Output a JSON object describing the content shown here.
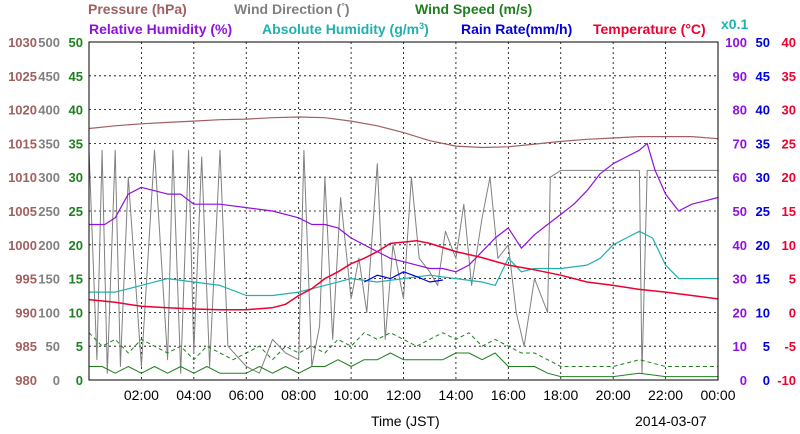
{
  "header": {
    "pressure": "Pressure (hPa)",
    "wind_direction_text": "Wind Direction (",
    "deg_symbol": "°",
    "wind_direction_close": ")",
    "wind_speed": "Wind Speed (m/s)",
    "relative_humidity": "Relative Humidity (%)",
    "absolute_humidity_text": "Absolute Humidity (g/m",
    "absolute_humidity_sup": "3",
    "absolute_humidity_close": ")",
    "rain_rate": "Rain Rate(mm/h)",
    "temperature_text": "Temperature (",
    "temperature_unit": "°C",
    "temperature_close": ")",
    "rain_scale_note": "x0.1"
  },
  "footer": {
    "xlabel": "Time (JST)",
    "date": "2014-03-07"
  },
  "colors": {
    "pressure": "#a06060",
    "wind_direction": "#808080",
    "wind_speed": "#208020",
    "relative_humidity": "#9010e0",
    "absolute_humidity": "#20b0b0",
    "rain_rate": "#0000dd",
    "temperature": "#ee0030",
    "grid": "#000000"
  },
  "chart_data": {
    "type": "line",
    "x_unit": "hours (JST)",
    "xlim": [
      0,
      24
    ],
    "x_ticks": [
      "02:00",
      "04:00",
      "06:00",
      "08:00",
      "10:00",
      "12:00",
      "14:00",
      "16:00",
      "18:00",
      "20:00",
      "22:00",
      "00:00"
    ],
    "grid": true,
    "axes": {
      "pressure": {
        "ylim": [
          980,
          1030
        ],
        "ticks": [
          "980",
          "985",
          "990",
          "995",
          "1000",
          "1005",
          "1010",
          "1015",
          "1020",
          "1025",
          "1030"
        ]
      },
      "wind_direction": {
        "ylim": [
          0,
          500
        ],
        "ticks": [
          "0",
          "50",
          "100",
          "150",
          "200",
          "250",
          "300",
          "350",
          "400",
          "450",
          "500"
        ]
      },
      "wind_speed": {
        "ylim": [
          0,
          50
        ],
        "ticks": [
          "0",
          "5",
          "10",
          "15",
          "20",
          "25",
          "30",
          "35",
          "40",
          "45",
          "50"
        ]
      },
      "relative_humidity": {
        "ylim": [
          0,
          100
        ],
        "ticks": [
          "0",
          "10",
          "20",
          "30",
          "40",
          "50",
          "60",
          "70",
          "80",
          "90",
          "100"
        ]
      },
      "rain_rate": {
        "ylim": [
          0,
          50
        ],
        "ticks": [
          "0",
          "5",
          "10",
          "15",
          "20",
          "25",
          "30",
          "35",
          "40",
          "45",
          "50"
        ]
      },
      "temperature": {
        "ylim": [
          -10,
          40
        ],
        "ticks": [
          "-10",
          "-5",
          "0",
          "5",
          "10",
          "15",
          "20",
          "25",
          "30",
          "35",
          "40"
        ]
      }
    },
    "series": [
      {
        "name": "Pressure (hPa)",
        "axis": "pressure",
        "x": [
          0,
          1,
          2,
          3,
          4,
          5,
          6,
          7,
          8,
          9,
          10,
          11,
          12,
          13,
          14,
          15,
          16,
          17,
          18,
          19,
          20,
          21,
          22,
          23,
          24
        ],
        "values": [
          1017.2,
          1017.6,
          1017.9,
          1018.1,
          1018.3,
          1018.5,
          1018.6,
          1018.8,
          1018.9,
          1018.8,
          1018.3,
          1017.6,
          1016.6,
          1015.4,
          1014.6,
          1014.4,
          1014.5,
          1014.9,
          1015.3,
          1015.6,
          1015.8,
          1016.0,
          1016.0,
          1016.0,
          1015.7
        ]
      },
      {
        "name": "Relative Humidity (%)",
        "axis": "relative_humidity",
        "x": [
          0,
          0.6,
          1,
          1.5,
          2,
          2.5,
          3,
          3.5,
          4,
          5,
          6,
          7,
          8,
          8.5,
          9,
          9.5,
          10,
          10.5,
          11,
          11.5,
          12,
          12.5,
          13,
          13.5,
          14,
          14.5,
          15,
          15.5,
          16,
          16.5,
          17,
          17.5,
          18,
          18.5,
          19,
          19.5,
          20,
          20.5,
          21,
          21.3,
          21.6,
          22,
          22.5,
          23,
          23.5,
          24
        ],
        "values": [
          46,
          46,
          48,
          55,
          57,
          56,
          55,
          55,
          52,
          52,
          51,
          50,
          48,
          46,
          46,
          45,
          42,
          40,
          38,
          36,
          35,
          34,
          33,
          33,
          32,
          34,
          38,
          42,
          45,
          39,
          43,
          46,
          49,
          52,
          56,
          61,
          64,
          66,
          68,
          70,
          62,
          55,
          50,
          52,
          53,
          54
        ]
      },
      {
        "name": "Absolute Humidity (g/m3)",
        "axis": "relative_humidity",
        "x": [
          0,
          1,
          2,
          3,
          4,
          5,
          6,
          7,
          8,
          9,
          10,
          11,
          12,
          13,
          14,
          15,
          15.5,
          16,
          16.5,
          17,
          18,
          19,
          19.5,
          20,
          20.5,
          21,
          21.5,
          22,
          22.5,
          23,
          24
        ],
        "values": [
          26,
          26,
          28,
          30,
          29,
          28,
          25,
          25,
          26,
          28,
          30,
          29,
          30,
          31,
          30,
          29,
          28,
          36,
          32,
          33,
          33,
          34,
          36,
          40,
          42,
          44,
          42,
          34,
          30,
          30,
          30
        ]
      },
      {
        "name": "Temperature (°C)",
        "axis": "temperature",
        "x": [
          0,
          1,
          2,
          3,
          4,
          5,
          6,
          7,
          7.5,
          8,
          8.5,
          9,
          9.5,
          10,
          10.5,
          11,
          11.5,
          12,
          12.5,
          13,
          13.5,
          14,
          15,
          16,
          17,
          18,
          19,
          20,
          21,
          22,
          23,
          24
        ],
        "values": [
          1.9,
          1.5,
          0.9,
          0.7,
          0.5,
          0.4,
          0.4,
          0.7,
          1.2,
          2.5,
          3.5,
          5.0,
          6.0,
          7.2,
          8.0,
          9.0,
          10.2,
          10.4,
          10.6,
          10.2,
          9.6,
          9.0,
          8.1,
          7.0,
          6.3,
          5.5,
          4.5,
          4.0,
          3.4,
          3.0,
          2.5,
          2.0
        ]
      },
      {
        "name": "Rain Rate(mm/h)",
        "axis": "rain_rate",
        "x": [
          10.5,
          11,
          11.5,
          12,
          12.5,
          13,
          13.5
        ],
        "values": [
          14.5,
          15.5,
          15,
          16,
          15.3,
          14.5,
          14.8
        ]
      },
      {
        "name": "Wind Direction (°)",
        "axis": "wind_direction",
        "x": [
          0,
          0.3,
          0.5,
          0.7,
          1,
          1.2,
          1.5,
          2,
          2.5,
          3,
          3.2,
          3.5,
          3.8,
          4,
          4.3,
          4.6,
          5,
          5.3,
          6,
          6.5,
          7,
          7.5,
          8,
          8.2,
          8.5,
          8.8,
          9,
          9.3,
          9.6,
          10,
          10.3,
          10.6,
          11,
          11.3,
          11.6,
          12,
          12.3,
          12.6,
          13,
          13.3,
          13.6,
          14,
          14.3,
          14.6,
          15,
          15.3,
          15.6,
          16,
          16.3,
          16.6,
          17,
          17.5,
          17.6,
          18,
          19,
          20,
          21,
          21.1,
          21.3,
          22,
          23,
          24
        ],
        "values": [
          340,
          30,
          340,
          10,
          340,
          20,
          300,
          20,
          340,
          30,
          340,
          10,
          340,
          40,
          330,
          20,
          340,
          50,
          20,
          10,
          60,
          40,
          30,
          340,
          20,
          80,
          300,
          60,
          270,
          120,
          180,
          100,
          320,
          60,
          200,
          120,
          300,
          180,
          160,
          140,
          220,
          180,
          260,
          140,
          240,
          300,
          180,
          200,
          100,
          50,
          150,
          100,
          300,
          310,
          310,
          310,
          310,
          10,
          310,
          310,
          310,
          310
        ]
      },
      {
        "name": "Wind Speed (m/s)",
        "axis": "wind_speed",
        "x": [
          0,
          0.5,
          1,
          1.5,
          2,
          2.5,
          3,
          3.5,
          4,
          4.5,
          5,
          5.5,
          6,
          6.5,
          7,
          7.5,
          8,
          8.5,
          9,
          9.5,
          10,
          10.5,
          11,
          11.5,
          12,
          12.5,
          13,
          13.5,
          14,
          14.5,
          15,
          15.5,
          16,
          16.5,
          17,
          17.5,
          18,
          19,
          20,
          21,
          22,
          23,
          24
        ],
        "values": [
          2,
          2,
          1,
          2,
          1,
          2,
          1,
          2,
          1,
          2,
          1,
          1,
          1,
          2,
          1,
          2,
          1,
          2,
          2,
          3,
          2,
          3,
          3,
          4,
          3,
          3,
          3,
          3,
          4,
          4,
          3,
          4,
          2,
          2,
          2,
          1,
          0.5,
          0.5,
          0.5,
          1,
          0.5,
          0.5,
          0.5
        ]
      },
      {
        "name": "Wind Speed (m/s) gust",
        "axis": "wind_speed",
        "x": [
          0,
          0.5,
          1,
          1.5,
          2,
          2.5,
          3,
          3.5,
          4,
          4.5,
          5,
          5.5,
          6,
          6.5,
          7,
          7.5,
          8,
          8.5,
          9,
          9.5,
          10,
          10.5,
          11,
          11.5,
          12,
          12.5,
          13,
          13.5,
          14,
          14.5,
          15,
          15.5,
          16,
          16.5,
          17,
          17.5,
          18,
          19,
          20,
          21,
          22,
          23,
          24
        ],
        "values": [
          7,
          5,
          6,
          4,
          6,
          5,
          4,
          5,
          3,
          5,
          4,
          3,
          4,
          5,
          3,
          5,
          4,
          5,
          4,
          6,
          5,
          7,
          6,
          7,
          6,
          5,
          6,
          7,
          6,
          7,
          5,
          6,
          5,
          4,
          4,
          3,
          2,
          2,
          2,
          3,
          2,
          2,
          2
        ]
      }
    ]
  }
}
